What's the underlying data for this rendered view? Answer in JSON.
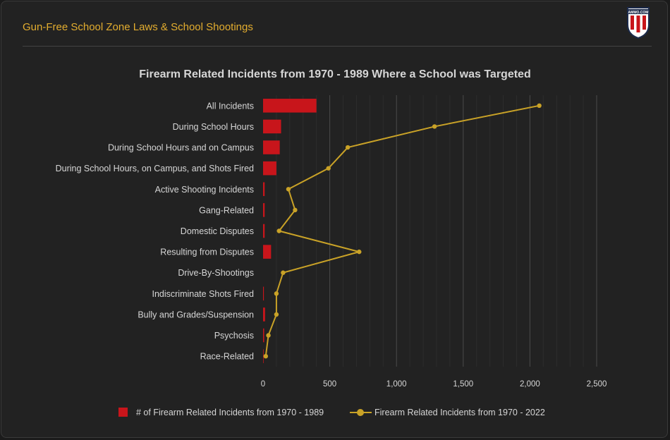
{
  "header": {
    "title": "Gun-Free School Zone Laws & School Shootings",
    "logo_text": "AMMO.COM"
  },
  "colors": {
    "bar": "#c8151b",
    "line": "#c9a227",
    "title": "#e3ad2f",
    "text": "#d6d6d6"
  },
  "chart_data": {
    "type": "bar",
    "orientation": "horizontal",
    "title": "Firearm Related Incidents from 1970 - 1989 Where a School was Targeted",
    "categories": [
      "All Incidents",
      "During School Hours",
      "During School Hours and on Campus",
      "During School Hours, on Campus, and Shots Fired",
      "Active Shooting Incidents",
      "Gang-Related",
      "Domestic Disputes",
      "Resulting from Disputes",
      "Drive-By-Shootings",
      "Indiscriminate Shots Fired",
      "Bully and Grades/Suspension",
      "Psychosis",
      "Race-Related"
    ],
    "series": [
      {
        "name": "# of Firearm Related Incidents from 1970 - 1989",
        "type": "bar",
        "values": [
          400,
          135,
          125,
          100,
          12,
          12,
          12,
          60,
          0,
          6,
          15,
          8,
          4
        ]
      },
      {
        "name": "Firearm Related Incidents from 1970 - 2022",
        "type": "line",
        "values": [
          2070,
          1285,
          635,
          490,
          190,
          240,
          120,
          720,
          150,
          100,
          100,
          40,
          20
        ]
      }
    ],
    "xlim": [
      0,
      2500
    ],
    "xticks": [
      0,
      500,
      1000,
      1500,
      2000,
      2500
    ],
    "xtick_labels": [
      "0",
      "500",
      "1,000",
      "1,500",
      "2,000",
      "2,500"
    ],
    "legend_position": "bottom"
  }
}
